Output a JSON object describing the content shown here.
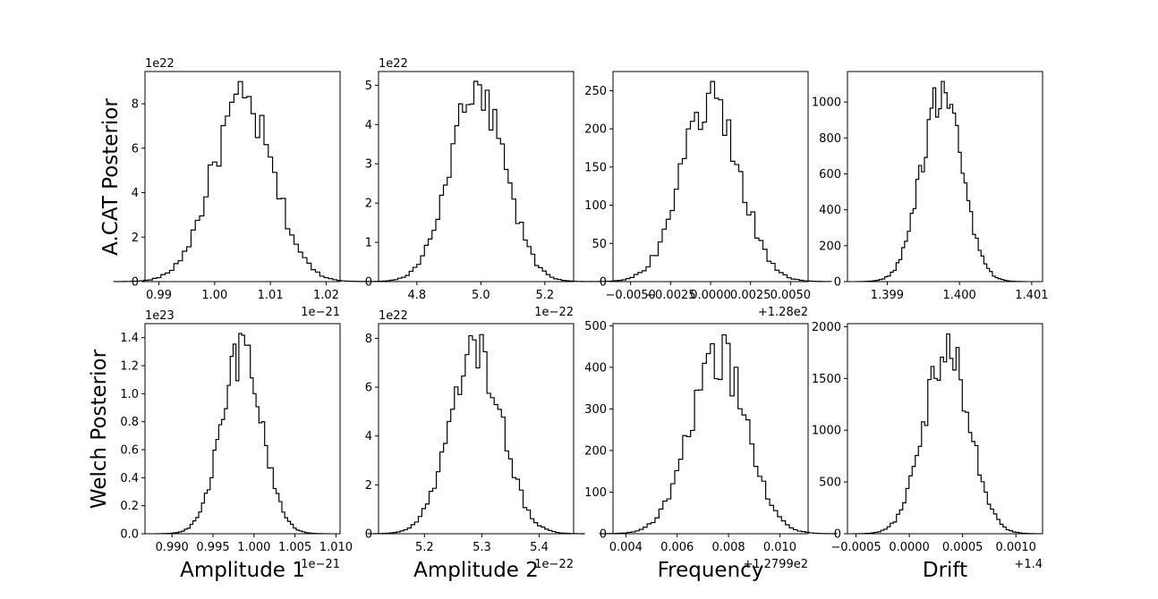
{
  "figure": {
    "row_labels": [
      "A.CAT Posterior",
      "Welch Posterior"
    ],
    "column_labels": [
      "Amplitude 1",
      "Amplitude 2",
      "Frequency",
      "Drift"
    ]
  },
  "chart_data": [
    {
      "type": "histogram",
      "row": 0,
      "col": 0,
      "mean": 1.005,
      "sd": 0.0055,
      "peak": 9.0,
      "xlim": [
        0.9875,
        1.0225
      ],
      "ylim": [
        0,
        9.45
      ],
      "xticks": [
        0.99,
        1.0,
        1.01,
        1.02
      ],
      "xtick_labels": [
        "0.99",
        "1.00",
        "1.01",
        "1.02"
      ],
      "yticks": [
        0,
        2,
        4,
        6,
        8
      ],
      "ytick_labels": [
        "0",
        "2",
        "4",
        "6",
        "8"
      ],
      "x_offset_text": "1e−21",
      "y_offset_text": "1e22",
      "xlabel": ""
    },
    {
      "type": "histogram",
      "row": 0,
      "col": 1,
      "mean": 4.99,
      "sd": 0.085,
      "peak": 5.1,
      "xlim": [
        4.68,
        5.29
      ],
      "ylim": [
        0,
        5.35
      ],
      "xticks": [
        4.8,
        5.0,
        5.2
      ],
      "xtick_labels": [
        "4.8",
        "5.0",
        "5.2"
      ],
      "yticks": [
        0,
        1,
        2,
        3,
        4,
        5
      ],
      "ytick_labels": [
        "0",
        "1",
        "2",
        "3",
        "4",
        "5"
      ],
      "x_offset_text": "1e−22",
      "y_offset_text": "1e22",
      "xlabel": ""
    },
    {
      "type": "histogram",
      "row": 0,
      "col": 2,
      "mean": 0.0,
      "sd": 0.0018,
      "peak": 262,
      "xlim": [
        -0.0061,
        0.0061
      ],
      "ylim": [
        0,
        275
      ],
      "xticks": [
        -0.005,
        -0.0025,
        0.0,
        0.0025,
        0.005
      ],
      "xtick_labels": [
        "−0.0050",
        "−0.0025",
        "0.0000",
        "0.0025",
        "0.0050"
      ],
      "yticks": [
        0,
        50,
        100,
        150,
        200,
        250
      ],
      "ytick_labels": [
        "0",
        "50",
        "100",
        "150",
        "200",
        "250"
      ],
      "x_offset_text": "+1.28e2",
      "y_offset_text": "",
      "xlabel": ""
    },
    {
      "type": "histogram",
      "row": 0,
      "col": 3,
      "mean": 1.39975,
      "sd": 0.00028,
      "peak": 1115,
      "xlim": [
        1.39845,
        1.40115
      ],
      "ylim": [
        0,
        1170
      ],
      "xticks": [
        1.399,
        1.4,
        1.401
      ],
      "xtick_labels": [
        "1.399",
        "1.400",
        "1.401"
      ],
      "yticks": [
        0,
        200,
        400,
        600,
        800,
        1000
      ],
      "ytick_labels": [
        "0",
        "200",
        "400",
        "600",
        "800",
        "1000"
      ],
      "x_offset_text": "",
      "y_offset_text": "",
      "xlabel": ""
    },
    {
      "type": "histogram",
      "row": 1,
      "col": 0,
      "mean": 0.9985,
      "sd": 0.0025,
      "peak": 1.43,
      "xlim": [
        0.9867,
        1.0105
      ],
      "ylim": [
        0,
        1.5
      ],
      "xticks": [
        0.99,
        0.995,
        1.0,
        1.005,
        1.01
      ],
      "xtick_labels": [
        "0.990",
        "0.995",
        "1.000",
        "1.005",
        "1.010"
      ],
      "yticks": [
        0,
        0.2,
        0.4,
        0.6,
        0.8,
        1.0,
        1.2,
        1.4
      ],
      "ytick_labels": [
        "0.0",
        "0.2",
        "0.4",
        "0.6",
        "0.8",
        "1.0",
        "1.2",
        "1.4"
      ],
      "x_offset_text": "1e−21",
      "y_offset_text": "1e23",
      "xlabel": "Amplitude 1"
    },
    {
      "type": "histogram",
      "row": 1,
      "col": 1,
      "mean": 5.29,
      "sd": 0.045,
      "peak": 8.15,
      "xlim": [
        5.12,
        5.46
      ],
      "ylim": [
        0,
        8.6
      ],
      "xticks": [
        5.2,
        5.3,
        5.4
      ],
      "xtick_labels": [
        "5.2",
        "5.3",
        "5.4"
      ],
      "yticks": [
        0,
        2,
        4,
        6,
        8
      ],
      "ytick_labels": [
        "0",
        "2",
        "4",
        "6",
        "8"
      ],
      "x_offset_text": "1e−22",
      "y_offset_text": "1e22",
      "xlabel": "Amplitude 2"
    },
    {
      "type": "histogram",
      "row": 1,
      "col": 2,
      "mean": 0.0076,
      "sd": 0.0011,
      "peak": 478,
      "xlim": [
        0.0035,
        0.0111
      ],
      "ylim": [
        0,
        505
      ],
      "xticks": [
        0.004,
        0.006,
        0.008,
        0.01
      ],
      "xtick_labels": [
        "0.004",
        "0.006",
        "0.008",
        "0.010"
      ],
      "yticks": [
        0,
        100,
        200,
        300,
        400,
        500
      ],
      "ytick_labels": [
        "0",
        "100",
        "200",
        "300",
        "400",
        "500"
      ],
      "x_offset_text": "+1.2799e2",
      "y_offset_text": "",
      "xlabel": "Frequency"
    },
    {
      "type": "histogram",
      "row": 1,
      "col": 3,
      "mean": 0.00035,
      "sd": 0.00021,
      "peak": 1930,
      "xlim": [
        -0.00058,
        0.00125
      ],
      "ylim": [
        0,
        2030
      ],
      "xticks": [
        -0.0005,
        0.0,
        0.0005,
        0.001
      ],
      "xtick_labels": [
        "−0.0005",
        "0.0000",
        "0.0005",
        "0.0010"
      ],
      "yticks": [
        0,
        500,
        1000,
        1500,
        2000
      ],
      "ytick_labels": [
        "0",
        "500",
        "1000",
        "1500",
        "2000"
      ],
      "x_offset_text": "+1.4",
      "y_offset_text": "",
      "xlabel": "Drift"
    }
  ]
}
